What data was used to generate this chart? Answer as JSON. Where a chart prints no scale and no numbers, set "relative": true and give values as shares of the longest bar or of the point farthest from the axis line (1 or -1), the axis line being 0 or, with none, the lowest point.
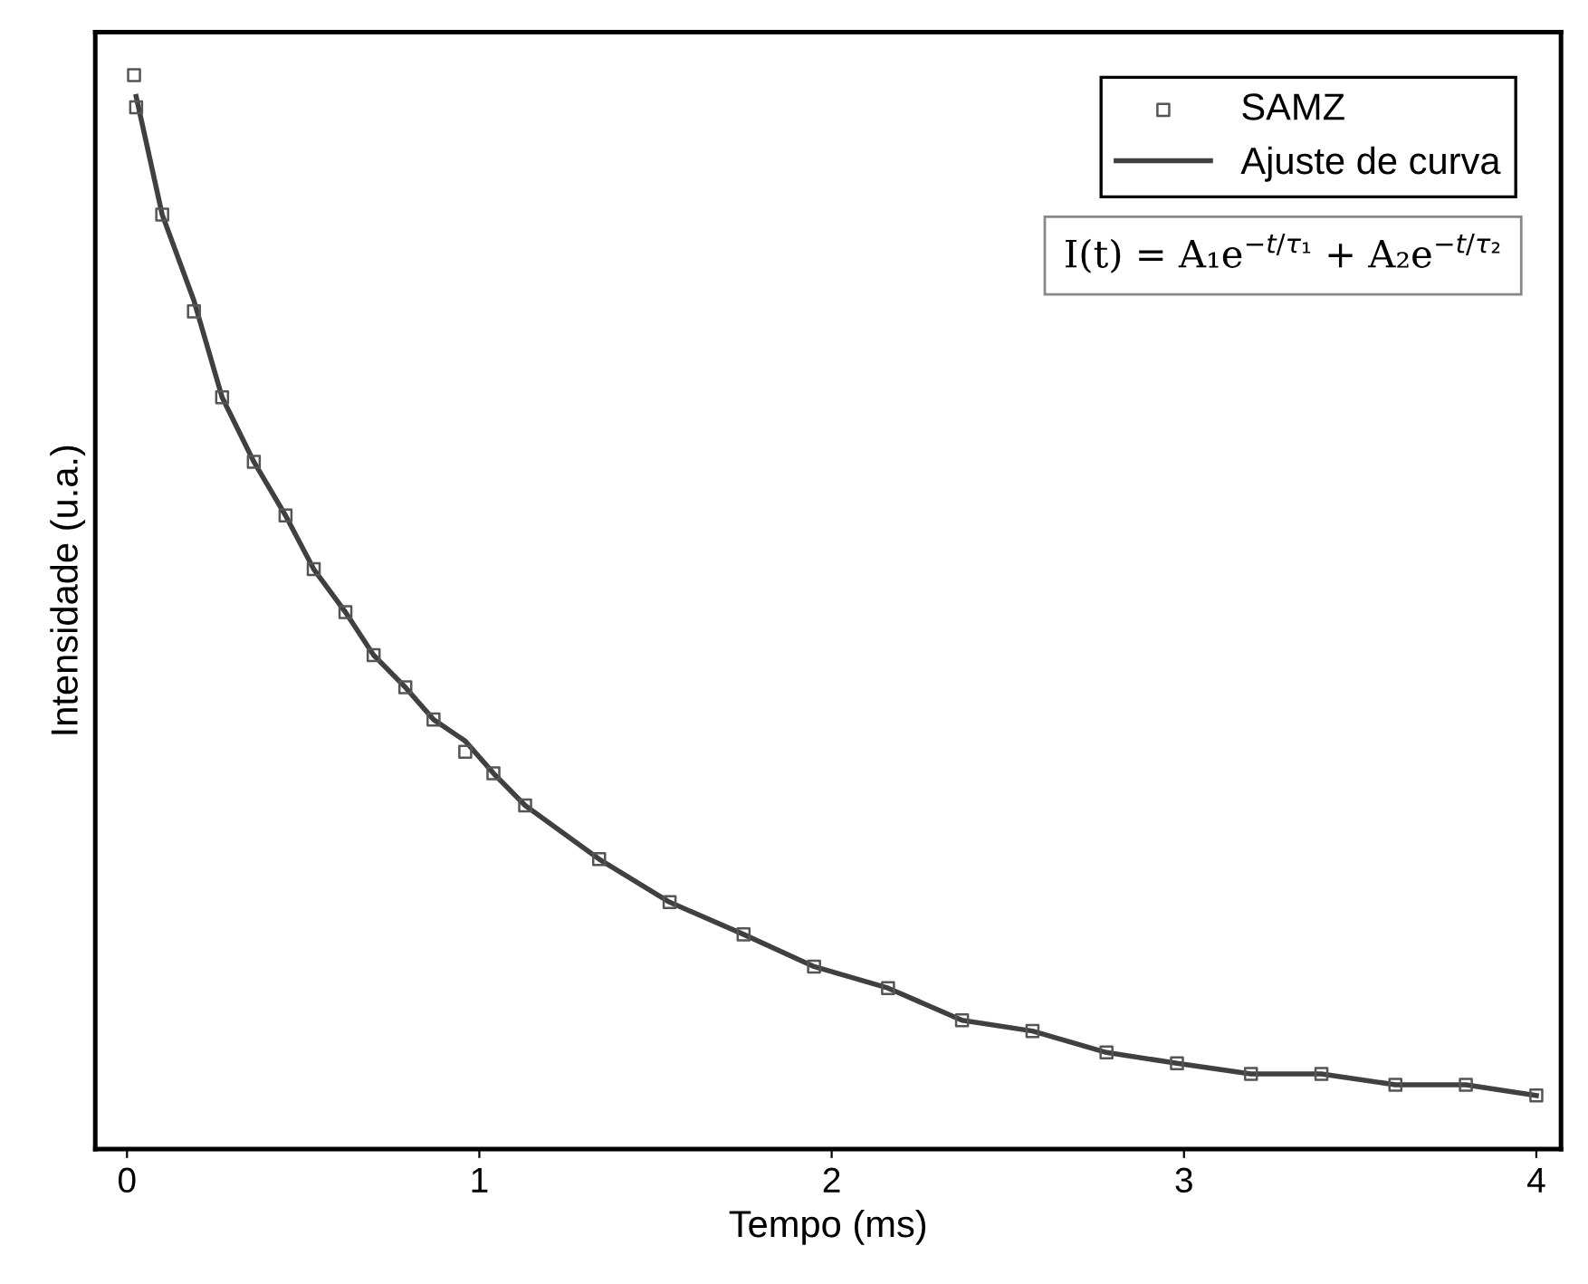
{
  "chart_data": {
    "type": "scatter",
    "xlabel": "Tempo (ms)",
    "ylabel": "Intensidade (u.a.)",
    "relative": true,
    "xlim": [
      -0.09,
      4.07
    ],
    "xticks": [
      0,
      1,
      2,
      3,
      4
    ],
    "tick_labels": "x",
    "grid": false,
    "legend": "top right",
    "annotations": [
      "I(t) = A₁e$^{−t/τ₁}$ + A₂e$^{−t/τ₂}$"
    ],
    "series": [
      {
        "name": "SAMZ",
        "marker": "square",
        "color": "#555555",
        "x": [
          0.02,
          0.026,
          0.1,
          0.19,
          0.27,
          0.36,
          0.45,
          0.53,
          0.62,
          0.7,
          0.79,
          0.87,
          0.96,
          1.04,
          1.13,
          1.34,
          1.54,
          1.75,
          1.95,
          2.16,
          2.37,
          2.57,
          2.78,
          2.98,
          3.19,
          3.39,
          3.6,
          3.8,
          4.0
        ],
        "values": [
          1.0,
          0.97,
          0.87,
          0.78,
          0.7,
          0.64,
          0.59,
          0.54,
          0.5,
          0.46,
          0.43,
          0.4,
          0.37,
          0.35,
          0.32,
          0.27,
          0.23,
          0.2,
          0.17,
          0.15,
          0.12,
          0.11,
          0.09,
          0.08,
          0.07,
          0.07,
          0.06,
          0.06,
          0.05
        ]
      },
      {
        "name": "Ajuste de curva",
        "type": "line",
        "marker": "none",
        "line_style": "solid",
        "color": "#404040",
        "x": [
          0.026,
          0.1,
          0.19,
          0.27,
          0.36,
          0.45,
          0.53,
          0.62,
          0.7,
          0.79,
          0.87,
          0.96,
          1.04,
          1.13,
          1.34,
          1.54,
          1.75,
          1.95,
          2.16,
          2.37,
          2.57,
          2.78,
          2.98,
          3.19,
          3.39,
          3.6,
          3.8,
          4.0
        ],
        "values": [
          0.98,
          0.87,
          0.79,
          0.7,
          0.64,
          0.59,
          0.54,
          0.5,
          0.46,
          0.43,
          0.4,
          0.38,
          0.35,
          0.32,
          0.27,
          0.23,
          0.2,
          0.17,
          0.15,
          0.12,
          0.11,
          0.09,
          0.08,
          0.07,
          0.07,
          0.06,
          0.06,
          0.05
        ]
      }
    ]
  }
}
